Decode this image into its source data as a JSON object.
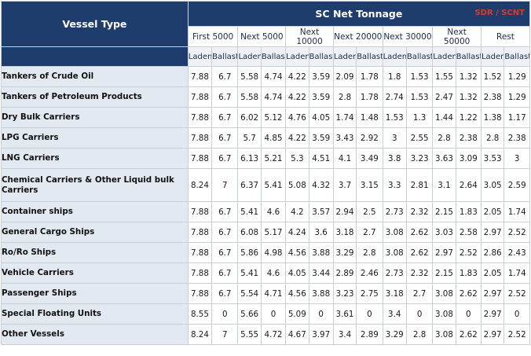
{
  "header": {
    "vessel_type": "Vessel Type",
    "net_tonnage": "SC Net Tonnage",
    "unit": "SDR / SCNT",
    "bands": [
      "First 5000",
      "Next 5000",
      "Next 10000",
      "Next 20000",
      "Next 30000",
      "Next 50000",
      "Rest"
    ],
    "laden": "Laden",
    "ballast": "Ballast"
  },
  "rows": [
    {
      "name": "Tankers of Crude Oil",
      "values": [
        "7.88",
        "6.7",
        "5.58",
        "4.74",
        "4.22",
        "3.59",
        "2.09",
        "1.78",
        "1.8",
        "1.53",
        "1.55",
        "1.32",
        "1.52",
        "1.29"
      ]
    },
    {
      "name": "Tankers of Petroleum Products",
      "values": [
        "7.88",
        "6.7",
        "5.58",
        "4.74",
        "4.22",
        "3.59",
        "2.8",
        "1.78",
        "2.74",
        "1.53",
        "2.47",
        "1.32",
        "2.38",
        "1.29"
      ]
    },
    {
      "name": "Dry Bulk Carriers",
      "values": [
        "7.88",
        "6.7",
        "6.02",
        "5.12",
        "4.76",
        "4.05",
        "1.74",
        "1.48",
        "1.53",
        "1.3",
        "1.44",
        "1.22",
        "1.38",
        "1.17"
      ]
    },
    {
      "name": "LPG Carriers",
      "values": [
        "7.88",
        "6.7",
        "5.7",
        "4.85",
        "4.22",
        "3.59",
        "3.43",
        "2.92",
        "3",
        "2.55",
        "2.8",
        "2.38",
        "2.8",
        "2.38"
      ]
    },
    {
      "name": "LNG Carriers",
      "values": [
        "7.88",
        "6.7",
        "6.13",
        "5.21",
        "5.3",
        "4.51",
        "4.1",
        "3.49",
        "3.8",
        "3.23",
        "3.63",
        "3.09",
        "3.53",
        "3"
      ]
    },
    {
      "name": "Chemical Carriers & Other Liquid bulk Carriers",
      "values": [
        "8.24",
        "7",
        "6.37",
        "5.41",
        "5.08",
        "4.32",
        "3.7",
        "3.15",
        "3.3",
        "2.81",
        "3.1",
        "2.64",
        "3.05",
        "2.59"
      ]
    },
    {
      "name": "Container ships",
      "values": [
        "7.88",
        "6.7",
        "5.41",
        "4.6",
        "4.2",
        "3.57",
        "2.94",
        "2.5",
        "2.73",
        "2.32",
        "2.15",
        "1.83",
        "2.05",
        "1.74"
      ]
    },
    {
      "name": "General Cargo Ships",
      "values": [
        "7.88",
        "6.7",
        "6.08",
        "5.17",
        "4.24",
        "3.6",
        "3.18",
        "2.7",
        "3.08",
        "2.62",
        "3.03",
        "2.58",
        "2.97",
        "2.52"
      ]
    },
    {
      "name": "Ro/Ro Ships",
      "values": [
        "7.88",
        "6.7",
        "5.86",
        "4.98",
        "4.56",
        "3.88",
        "3.29",
        "2.8",
        "3.08",
        "2.62",
        "2.97",
        "2.52",
        "2.86",
        "2.43"
      ]
    },
    {
      "name": "Vehicle Carriers",
      "values": [
        "7.88",
        "6.7",
        "5.41",
        "4.6",
        "4.05",
        "3.44",
        "2.89",
        "2.46",
        "2.73",
        "2.32",
        "2.15",
        "1.83",
        "2.05",
        "1.74"
      ]
    },
    {
      "name": "Passenger Ships",
      "values": [
        "7.88",
        "6.7",
        "5.54",
        "4.71",
        "4.56",
        "3.88",
        "3.23",
        "2.75",
        "3.18",
        "2.7",
        "3.08",
        "2.62",
        "2.97",
        "2.52"
      ]
    },
    {
      "name": "Special Floating Units",
      "values": [
        "8.55",
        "0",
        "5.66",
        "0",
        "5.09",
        "0",
        "3.61",
        "0",
        "3.4",
        "0",
        "3.08",
        "0",
        "2.97",
        "0"
      ]
    },
    {
      "name": "Other Vessels",
      "values": [
        "8.24",
        "7",
        "5.55",
        "4.72",
        "4.67",
        "3.97",
        "3.4",
        "2.89",
        "3.29",
        "2.8",
        "3.08",
        "2.62",
        "2.97",
        "2.52"
      ]
    }
  ]
}
